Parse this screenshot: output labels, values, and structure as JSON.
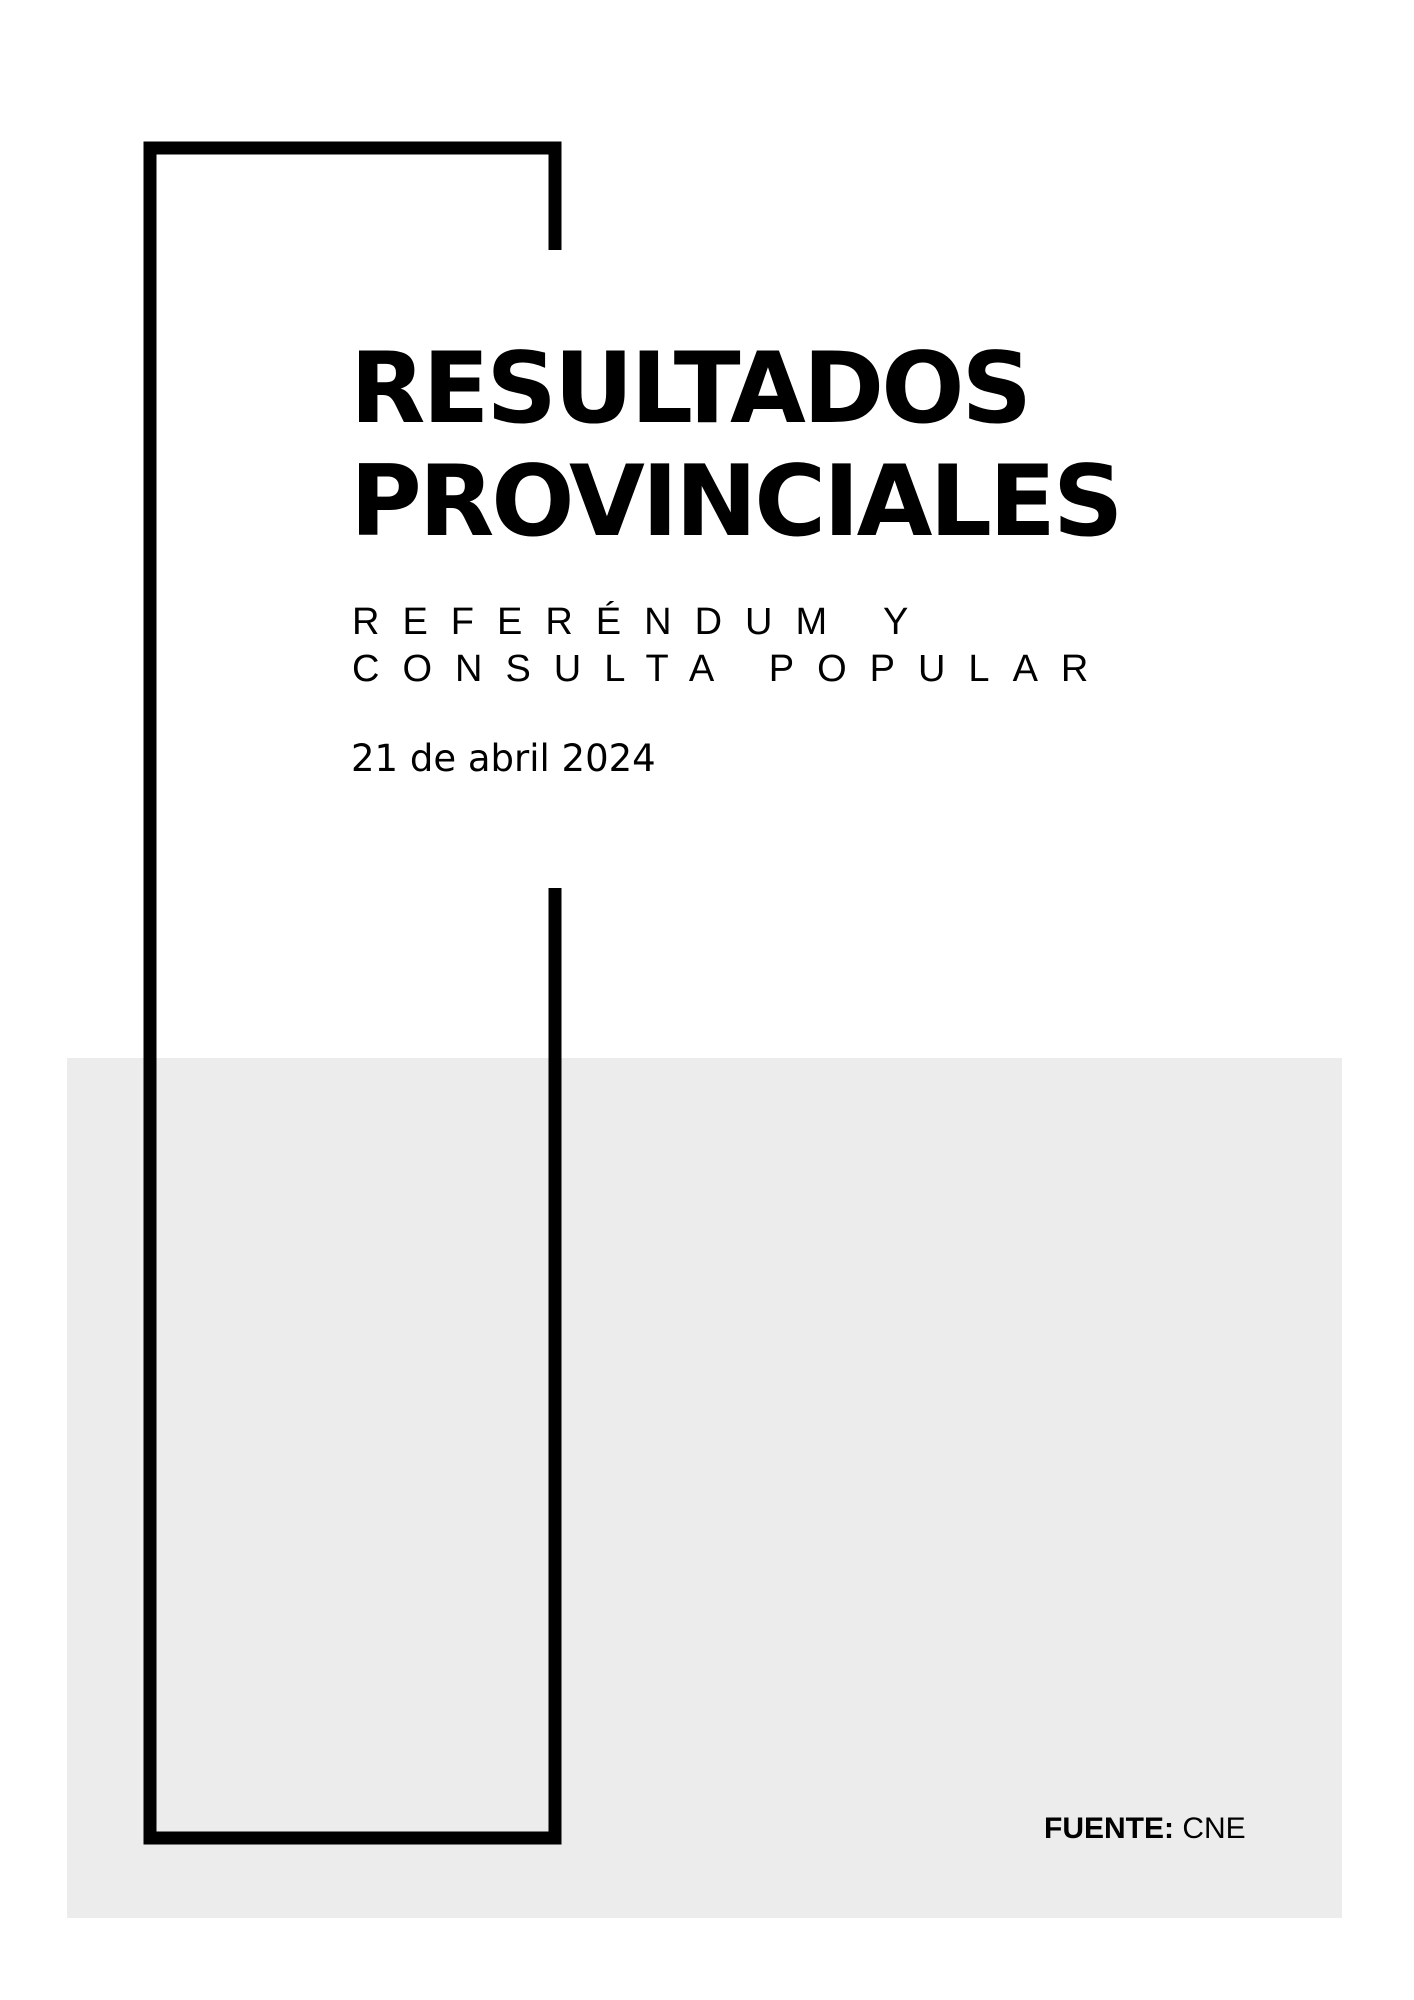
{
  "cover": {
    "title_line1": "RESULTADOS",
    "title_line2": "PROVINCIALES",
    "subtitle_line1": "REFERÉNDUM Y",
    "subtitle_line2": "CONSULTA POPULAR",
    "date": "21 de abril 2024"
  },
  "footer": {
    "source_label": "FUENTE:",
    "source_value": "CNE"
  },
  "colors": {
    "ink": "#000000",
    "panel": "#ececec",
    "background": "#ffffff"
  }
}
